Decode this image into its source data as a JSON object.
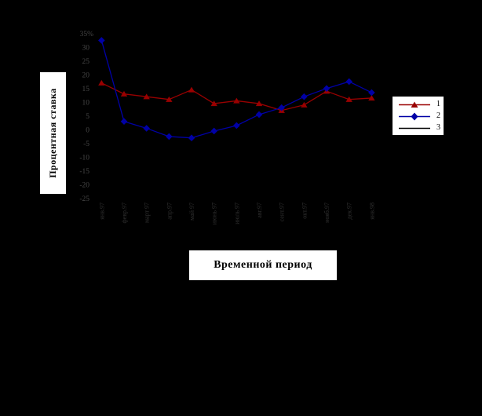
{
  "page": {
    "background_color": "#000000",
    "tick_label_color_y": "#474747",
    "tick_label_color_x": "#303030"
  },
  "chart_data": {
    "type": "line",
    "title": "",
    "ylabel": "Процентная ставка",
    "xlabel": "Временной период",
    "grid": false,
    "legend_position": "right",
    "ylim": [
      -25,
      35
    ],
    "y_ticks": [
      {
        "label": "35%",
        "value": 35
      },
      {
        "label": "30",
        "value": 30
      },
      {
        "label": "25",
        "value": 25
      },
      {
        "label": "20",
        "value": 20
      },
      {
        "label": "15",
        "value": 15
      },
      {
        "label": "10",
        "value": 10
      },
      {
        "label": "5",
        "value": 5
      },
      {
        "label": "0",
        "value": 0
      },
      {
        "label": "-5",
        "value": -5
      },
      {
        "label": "-10",
        "value": -10
      },
      {
        "label": "-15",
        "value": -15
      },
      {
        "label": "-20",
        "value": -20
      },
      {
        "label": "-25",
        "value": -25
      }
    ],
    "categories": [
      "янв.97",
      "февр.97",
      "март 97",
      "апр.97",
      "май 97",
      "июнь 97",
      "июль 97",
      "авг.97",
      "сент.97",
      "окт.97",
      "нояб.97",
      "дек.97",
      "янв.98"
    ],
    "series": [
      {
        "name": "1",
        "color": "#990000",
        "marker": "triangle",
        "values": [
          17,
          13,
          12,
          11,
          14.5,
          9.5,
          10.5,
          9.5,
          7,
          9,
          14,
          11,
          11.5
        ]
      },
      {
        "name": "2",
        "color": "#0000A6",
        "marker": "diamond",
        "values": [
          32.5,
          3,
          0.5,
          -2.5,
          -3,
          -0.5,
          1.5,
          5.5,
          8,
          12,
          15,
          17.5,
          13.5
        ]
      },
      {
        "name": "3",
        "color": "#000000",
        "marker": "none",
        "values": null
      }
    ]
  }
}
